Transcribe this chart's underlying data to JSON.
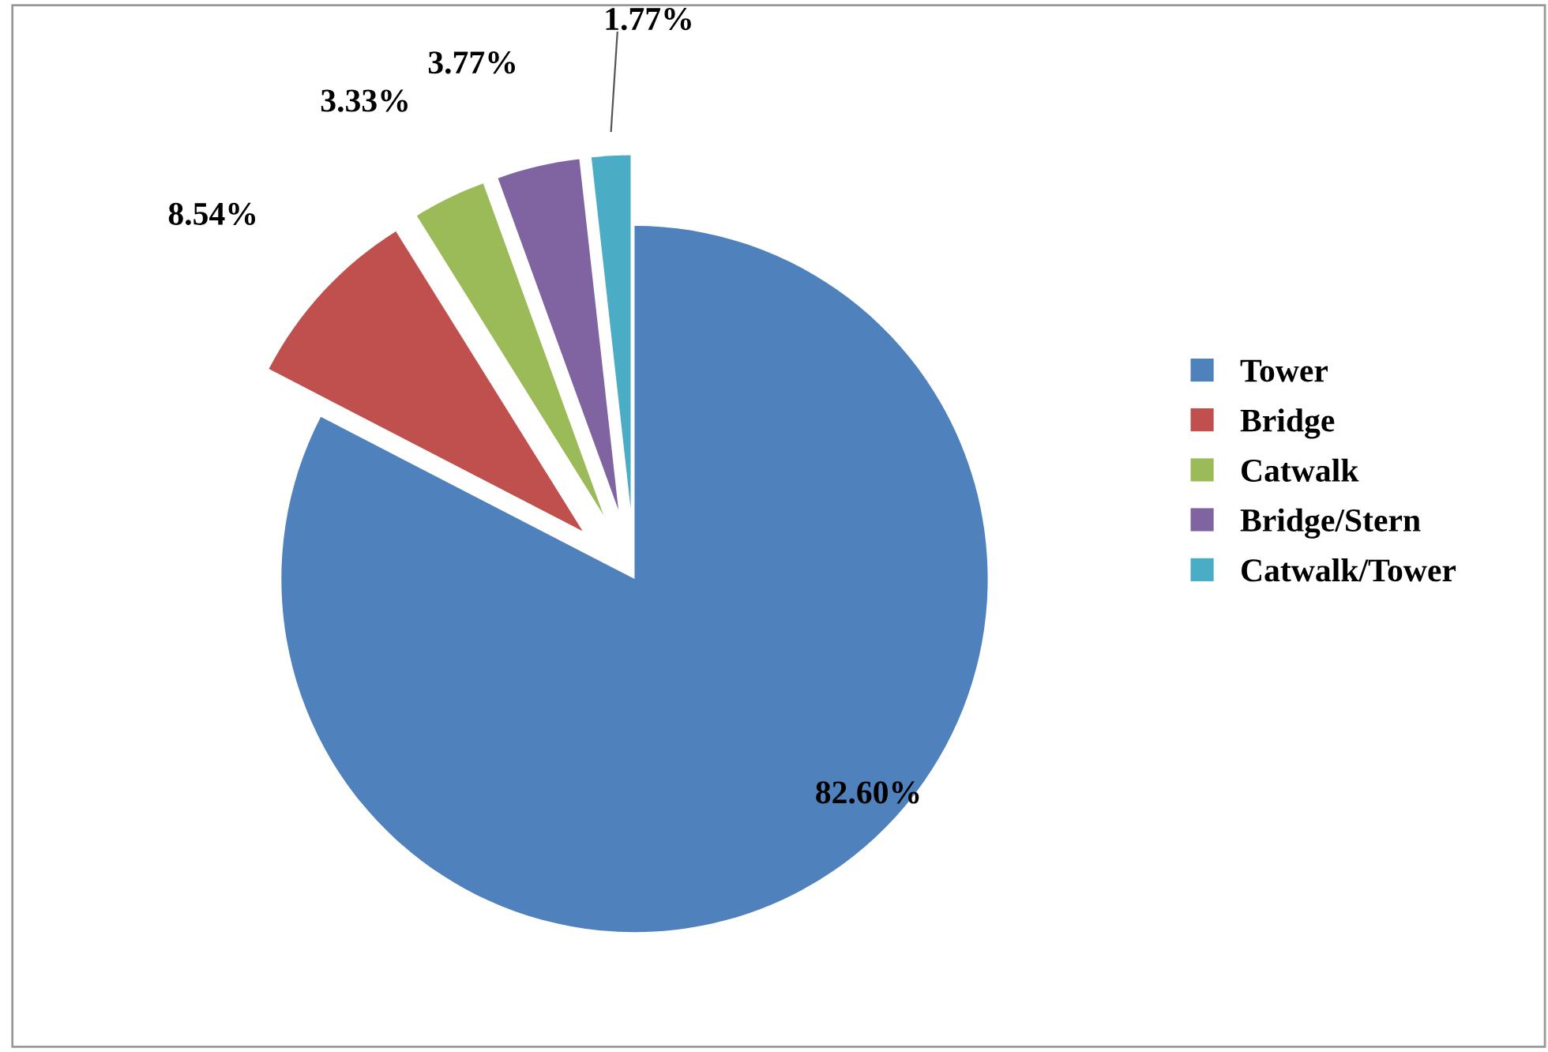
{
  "chart_data": {
    "type": "pie",
    "categories": [
      "Tower",
      "Bridge",
      "Catwalk",
      "Bridge/Stern",
      "Catwalk/Tower"
    ],
    "values": [
      82.6,
      8.54,
      3.33,
      3.77,
      1.77
    ],
    "value_labels": [
      "82.60%",
      "8.54%",
      "3.33%",
      "3.77%",
      "1.77%"
    ],
    "colors": [
      "#4f81bd",
      "#c0504d",
      "#9bbb59",
      "#8064a2",
      "#4bacc6"
    ],
    "legend": "right"
  }
}
